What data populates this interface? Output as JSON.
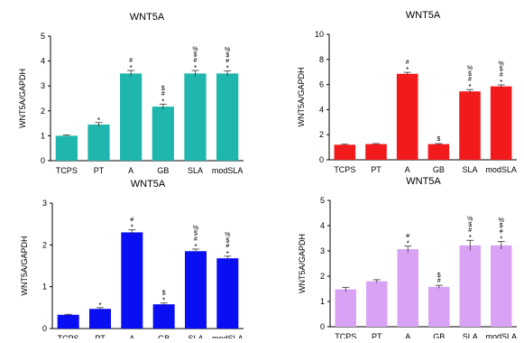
{
  "chart_data": [
    {
      "type": "bar",
      "title": "WNT5A",
      "ylabel": "WNT5A/GAPDH",
      "xlabel": "",
      "categories": [
        "TCPS",
        "PT",
        "A",
        "GB",
        "SLA",
        "modSLA"
      ],
      "values": [
        1.0,
        1.45,
        3.5,
        2.17,
        3.5,
        3.5
      ],
      "errors": [
        0.03,
        0.08,
        0.12,
        0.1,
        0.12,
        0.1
      ],
      "annotations": [
        [],
        [
          "*"
        ],
        [
          "*",
          "#"
        ],
        [
          "*",
          "#",
          "$"
        ],
        [
          "*",
          "#",
          "$",
          "%"
        ],
        [
          "*",
          "#",
          "$",
          "%"
        ]
      ],
      "ylim": [
        0,
        5
      ],
      "yticks": [
        0,
        1,
        2,
        3,
        4,
        5
      ],
      "color": "#1fb7ad"
    },
    {
      "type": "bar",
      "title": "WNT5A",
      "ylabel": "WNT5A/GAPDH",
      "xlabel": "",
      "categories": [
        "TCPS",
        "PT",
        "A",
        "GB",
        "SLA",
        "modSLA"
      ],
      "values": [
        1.2,
        1.25,
        6.85,
        1.25,
        5.45,
        5.85
      ],
      "errors": [
        0.04,
        0.04,
        0.12,
        0.04,
        0.15,
        0.12
      ],
      "annotations": [
        [],
        [],
        [
          "*",
          "#"
        ],
        [
          "$"
        ],
        [
          "*",
          "#",
          "$",
          "%"
        ],
        [
          "*",
          "#",
          "$",
          "%"
        ]
      ],
      "ylim": [
        0,
        10
      ],
      "yticks": [
        0,
        2,
        4,
        6,
        8,
        10
      ],
      "color": "#f21a1a"
    },
    {
      "type": "bar",
      "title": "WNT5A",
      "ylabel": "WNT5A/GAPDH",
      "xlabel": "",
      "categories": [
        "TCPS",
        "PT",
        "A",
        "GB",
        "SLA",
        "modSLA"
      ],
      "values": [
        0.33,
        0.47,
        2.3,
        0.58,
        1.85,
        1.68
      ],
      "errors": [
        0.01,
        0.03,
        0.06,
        0.03,
        0.05,
        0.05
      ],
      "annotations": [
        [],
        [
          "*"
        ],
        [
          "*",
          "#"
        ],
        [
          "*",
          "$"
        ],
        [
          "*",
          "#",
          "$",
          "%"
        ],
        [
          "*",
          "#",
          "$",
          "%"
        ]
      ],
      "ylim": [
        0,
        3
      ],
      "yticks": [
        0,
        1,
        2,
        3
      ],
      "color": "#0a0ef2"
    },
    {
      "type": "bar",
      "title": "WNT5A",
      "ylabel": "WNT5A/GAPDH",
      "xlabel": "",
      "categories": [
        "TCPS",
        "PT",
        "A",
        "GB",
        "SLA",
        "modSLA"
      ],
      "values": [
        1.48,
        1.8,
        3.07,
        1.58,
        3.22,
        3.22
      ],
      "errors": [
        0.08,
        0.06,
        0.12,
        0.06,
        0.2,
        0.15
      ],
      "annotations": [
        [],
        [],
        [
          "*",
          "#"
        ],
        [
          "#",
          "$"
        ],
        [
          "*",
          "#",
          "$",
          "%"
        ],
        [
          "*",
          "#",
          "$",
          "%"
        ]
      ],
      "ylim": [
        0,
        5
      ],
      "yticks": [
        0,
        1,
        2,
        3,
        4,
        5
      ],
      "color": "#d9a2f4"
    }
  ]
}
